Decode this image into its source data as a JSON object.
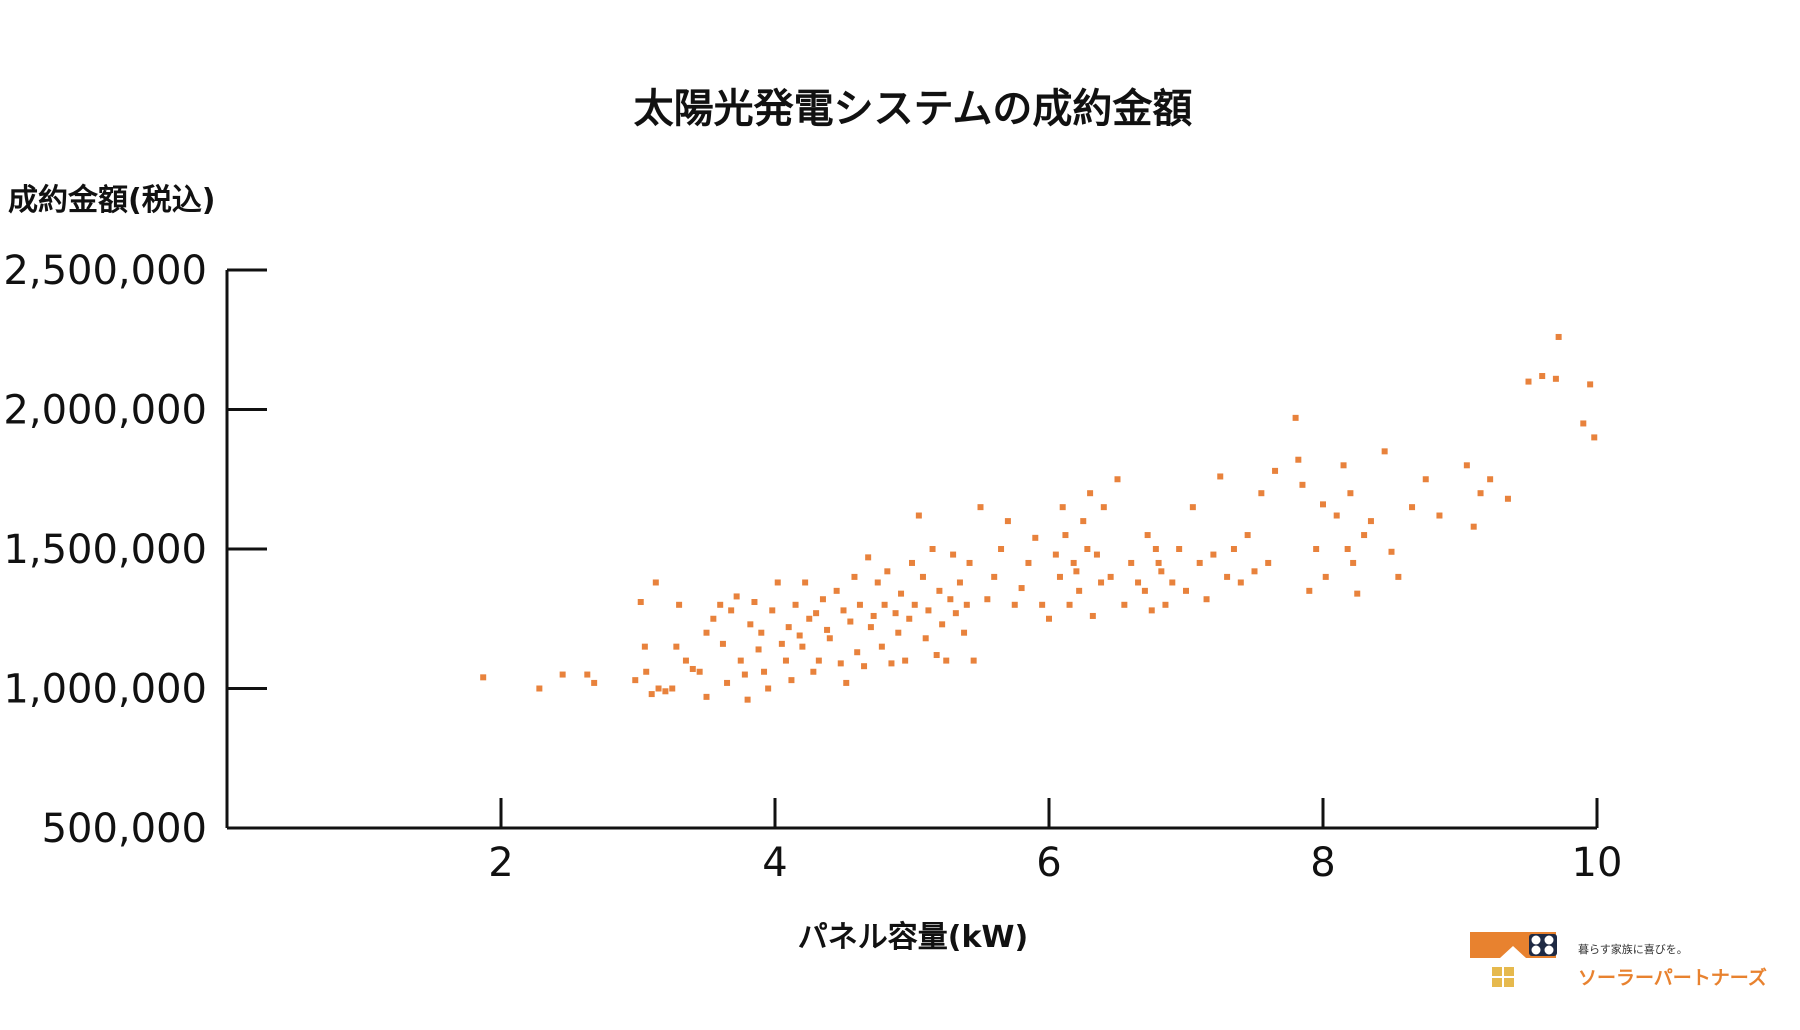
{
  "chart_data": {
    "type": "scatter",
    "title": "太陽光発電システムの成約金額",
    "xlabel": "パネル容量(kW)",
    "ylabel": "成約金額(税込)",
    "xlim": [
      0,
      10
    ],
    "ylim": [
      500000,
      2500000
    ],
    "x_ticks": [
      2,
      4,
      6,
      8,
      10
    ],
    "y_ticks": [
      2500000,
      2000000,
      1500000,
      1000000,
      500000
    ],
    "x_tick_labels": [
      "2",
      "4",
      "6",
      "8",
      "10"
    ],
    "y_tick_labels": [
      "2,500,000",
      "2,000,000",
      "1,500,000",
      "1,000,000",
      "500,000"
    ],
    "grid": false,
    "point_color": "#e8823c",
    "series": [
      {
        "points": [
          [
            1.87,
            1040000
          ],
          [
            2.28,
            1000000
          ],
          [
            2.45,
            1050000
          ],
          [
            2.63,
            1050000
          ],
          [
            2.68,
            1020000
          ],
          [
            2.98,
            1030000
          ],
          [
            3.02,
            1310000
          ],
          [
            3.05,
            1150000
          ],
          [
            3.06,
            1060000
          ],
          [
            3.1,
            980000
          ],
          [
            3.13,
            1380000
          ],
          [
            3.15,
            1000000
          ],
          [
            3.2,
            990000
          ],
          [
            3.25,
            1000000
          ],
          [
            3.28,
            1150000
          ],
          [
            3.3,
            1300000
          ],
          [
            3.35,
            1100000
          ],
          [
            3.4,
            1070000
          ],
          [
            3.45,
            1060000
          ],
          [
            3.5,
            1200000
          ],
          [
            3.5,
            970000
          ],
          [
            3.55,
            1250000
          ],
          [
            3.6,
            1300000
          ],
          [
            3.62,
            1160000
          ],
          [
            3.65,
            1020000
          ],
          [
            3.68,
            1280000
          ],
          [
            3.72,
            1330000
          ],
          [
            3.75,
            1100000
          ],
          [
            3.78,
            1050000
          ],
          [
            3.8,
            960000
          ],
          [
            3.82,
            1230000
          ],
          [
            3.85,
            1310000
          ],
          [
            3.88,
            1140000
          ],
          [
            3.9,
            1200000
          ],
          [
            3.92,
            1060000
          ],
          [
            3.95,
            1000000
          ],
          [
            3.98,
            1280000
          ],
          [
            4.02,
            1380000
          ],
          [
            4.05,
            1160000
          ],
          [
            4.08,
            1100000
          ],
          [
            4.1,
            1220000
          ],
          [
            4.12,
            1030000
          ],
          [
            4.15,
            1300000
          ],
          [
            4.18,
            1190000
          ],
          [
            4.2,
            1150000
          ],
          [
            4.22,
            1380000
          ],
          [
            4.25,
            1250000
          ],
          [
            4.28,
            1060000
          ],
          [
            4.3,
            1270000
          ],
          [
            4.32,
            1100000
          ],
          [
            4.35,
            1320000
          ],
          [
            4.38,
            1210000
          ],
          [
            4.4,
            1180000
          ],
          [
            4.45,
            1350000
          ],
          [
            4.48,
            1090000
          ],
          [
            4.5,
            1280000
          ],
          [
            4.52,
            1020000
          ],
          [
            4.55,
            1240000
          ],
          [
            4.58,
            1400000
          ],
          [
            4.6,
            1130000
          ],
          [
            4.62,
            1300000
          ],
          [
            4.65,
            1080000
          ],
          [
            4.68,
            1470000
          ],
          [
            4.7,
            1220000
          ],
          [
            4.72,
            1260000
          ],
          [
            4.75,
            1380000
          ],
          [
            4.78,
            1150000
          ],
          [
            4.8,
            1300000
          ],
          [
            4.82,
            1420000
          ],
          [
            4.85,
            1090000
          ],
          [
            4.88,
            1270000
          ],
          [
            4.9,
            1200000
          ],
          [
            4.92,
            1340000
          ],
          [
            4.95,
            1100000
          ],
          [
            4.98,
            1250000
          ],
          [
            5.0,
            1450000
          ],
          [
            5.02,
            1300000
          ],
          [
            5.05,
            1620000
          ],
          [
            5.08,
            1400000
          ],
          [
            5.1,
            1180000
          ],
          [
            5.12,
            1280000
          ],
          [
            5.15,
            1500000
          ],
          [
            5.18,
            1120000
          ],
          [
            5.2,
            1350000
          ],
          [
            5.22,
            1230000
          ],
          [
            5.25,
            1100000
          ],
          [
            5.28,
            1320000
          ],
          [
            5.3,
            1480000
          ],
          [
            5.32,
            1270000
          ],
          [
            5.35,
            1380000
          ],
          [
            5.38,
            1200000
          ],
          [
            5.4,
            1300000
          ],
          [
            5.42,
            1450000
          ],
          [
            5.45,
            1100000
          ],
          [
            5.5,
            1650000
          ],
          [
            5.55,
            1320000
          ],
          [
            5.6,
            1400000
          ],
          [
            5.65,
            1500000
          ],
          [
            5.7,
            1600000
          ],
          [
            5.75,
            1300000
          ],
          [
            5.8,
            1360000
          ],
          [
            5.85,
            1450000
          ],
          [
            5.9,
            1540000
          ],
          [
            5.95,
            1300000
          ],
          [
            6.0,
            1250000
          ],
          [
            6.05,
            1480000
          ],
          [
            6.08,
            1400000
          ],
          [
            6.1,
            1650000
          ],
          [
            6.12,
            1550000
          ],
          [
            6.15,
            1300000
          ],
          [
            6.18,
            1450000
          ],
          [
            6.2,
            1420000
          ],
          [
            6.22,
            1350000
          ],
          [
            6.25,
            1600000
          ],
          [
            6.28,
            1500000
          ],
          [
            6.3,
            1700000
          ],
          [
            6.32,
            1260000
          ],
          [
            6.35,
            1480000
          ],
          [
            6.38,
            1380000
          ],
          [
            6.4,
            1650000
          ],
          [
            6.45,
            1400000
          ],
          [
            6.5,
            1750000
          ],
          [
            6.55,
            1300000
          ],
          [
            6.6,
            1450000
          ],
          [
            6.65,
            1380000
          ],
          [
            6.7,
            1350000
          ],
          [
            6.72,
            1550000
          ],
          [
            6.75,
            1280000
          ],
          [
            6.78,
            1500000
          ],
          [
            6.8,
            1450000
          ],
          [
            6.82,
            1420000
          ],
          [
            6.85,
            1300000
          ],
          [
            6.9,
            1380000
          ],
          [
            6.95,
            1500000
          ],
          [
            7.0,
            1350000
          ],
          [
            7.05,
            1650000
          ],
          [
            7.1,
            1450000
          ],
          [
            7.15,
            1320000
          ],
          [
            7.2,
            1480000
          ],
          [
            7.25,
            1760000
          ],
          [
            7.3,
            1400000
          ],
          [
            7.35,
            1500000
          ],
          [
            7.4,
            1380000
          ],
          [
            7.45,
            1550000
          ],
          [
            7.5,
            1420000
          ],
          [
            7.55,
            1700000
          ],
          [
            7.6,
            1450000
          ],
          [
            7.65,
            1780000
          ],
          [
            7.8,
            1970000
          ],
          [
            7.82,
            1820000
          ],
          [
            7.85,
            1730000
          ],
          [
            7.9,
            1350000
          ],
          [
            7.95,
            1500000
          ],
          [
            8.0,
            1660000
          ],
          [
            8.02,
            1400000
          ],
          [
            8.1,
            1620000
          ],
          [
            8.15,
            1800000
          ],
          [
            8.18,
            1500000
          ],
          [
            8.2,
            1700000
          ],
          [
            8.22,
            1450000
          ],
          [
            8.25,
            1340000
          ],
          [
            8.3,
            1550000
          ],
          [
            8.35,
            1600000
          ],
          [
            8.45,
            1850000
          ],
          [
            8.5,
            1490000
          ],
          [
            8.55,
            1400000
          ],
          [
            8.65,
            1650000
          ],
          [
            8.75,
            1750000
          ],
          [
            8.85,
            1620000
          ],
          [
            9.05,
            1800000
          ],
          [
            9.1,
            1580000
          ],
          [
            9.15,
            1700000
          ],
          [
            9.22,
            1750000
          ],
          [
            9.35,
            1680000
          ],
          [
            9.5,
            2100000
          ],
          [
            9.6,
            2120000
          ],
          [
            9.7,
            2110000
          ],
          [
            9.72,
            2260000
          ],
          [
            9.9,
            1950000
          ],
          [
            9.95,
            2090000
          ],
          [
            9.98,
            1900000
          ]
        ]
      }
    ]
  },
  "logo": {
    "tagline": "暮らす家族に喜びを。",
    "name": "ソーラーパートナーズ",
    "colors": {
      "orange": "#e8822f",
      "navy": "#1f2a44",
      "yellow": "#e6b94d"
    }
  }
}
